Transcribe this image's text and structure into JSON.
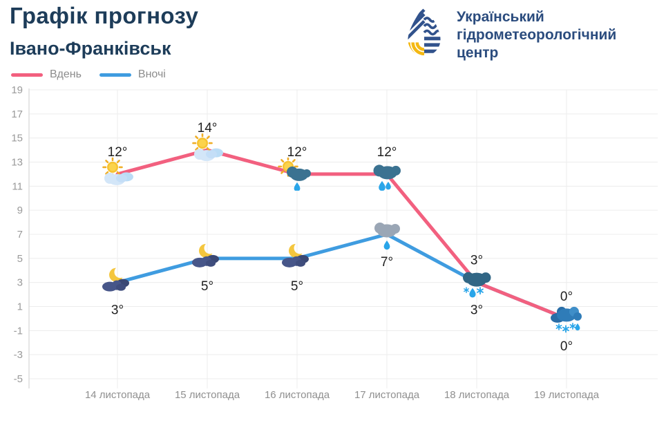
{
  "header": {
    "title": "Графік прогнозу",
    "subtitle": "Івано-Франківськ"
  },
  "logo": {
    "lines": [
      "Український",
      "гідрометеорологічний",
      "центр"
    ]
  },
  "legend": {
    "items": [
      {
        "label": "Вдень",
        "color": "#f2607f"
      },
      {
        "label": "Вночі",
        "color": "#3f9ce0"
      }
    ]
  },
  "chart_data": {
    "type": "line",
    "categories": [
      "14 листопада",
      "15 листопада",
      "16 листопада",
      "17 листопада",
      "18 листопада",
      "19 листопада"
    ],
    "series": [
      {
        "name": "Вдень",
        "color": "#f2607f",
        "values": [
          12,
          14,
          12,
          12,
          3,
          0
        ],
        "icons": [
          "sun-cloud",
          "sun-cloud",
          "sun-raincloud",
          "raincloud",
          "rain-snow-cloud",
          "snow-cloud"
        ],
        "label_position": "above"
      },
      {
        "name": "Вночі",
        "color": "#3f9ce0",
        "values": [
          3,
          5,
          5,
          7,
          3,
          0
        ],
        "icons": [
          "moon-cloud",
          "moon-cloud",
          "moon-cloud",
          "gray-raincloud",
          null,
          null
        ],
        "label_position": "below"
      }
    ],
    "ylim": [
      -5,
      19
    ],
    "yticks": [
      19,
      17,
      15,
      13,
      11,
      9,
      7,
      5,
      3,
      1,
      -1,
      -3,
      -5
    ],
    "grid": true,
    "legend_position": "top-left",
    "unit": "°"
  }
}
